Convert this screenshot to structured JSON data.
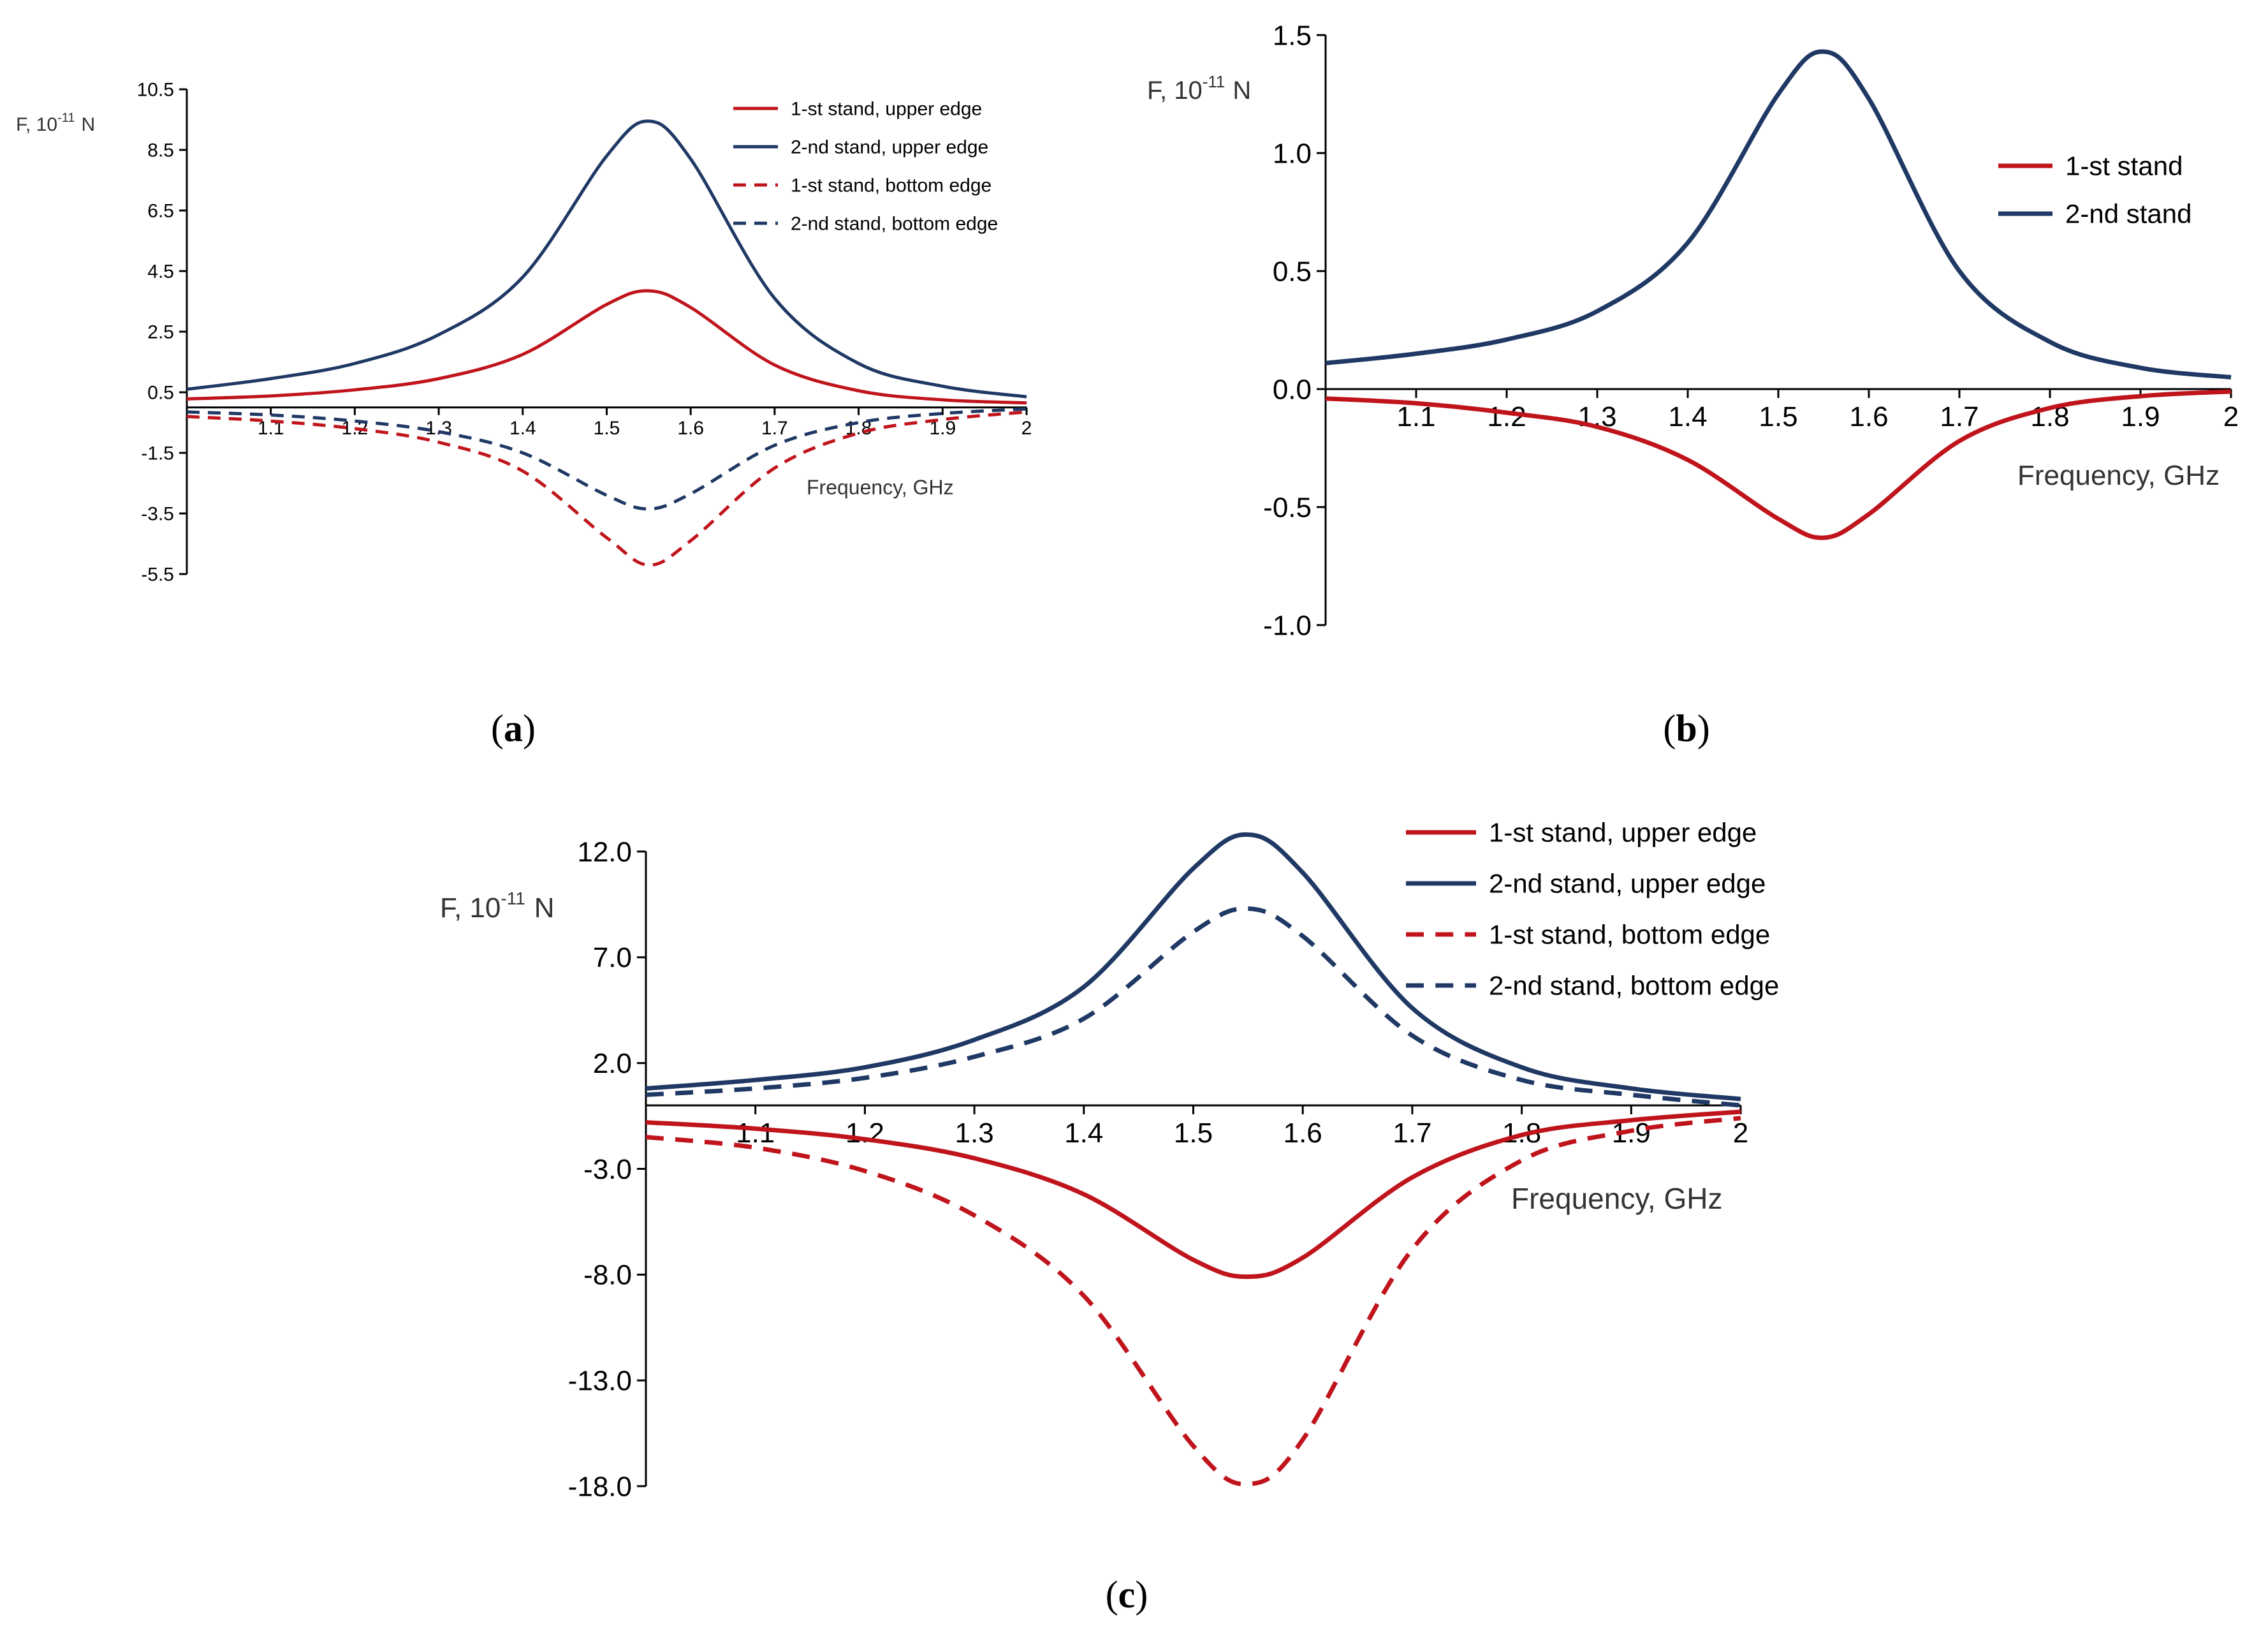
{
  "chart_data": [
    {
      "panel": "(a)",
      "type": "line",
      "ylabel": "F, 10",
      "ylabel_exp": "-11",
      "ylabel_unit": "N",
      "xlabel": "Frequency,  GHz",
      "xlim": [
        1,
        2
      ],
      "ylim": [
        -5.5,
        10.5
      ],
      "xticks": [
        "1.1",
        "1.2",
        "1.3",
        "1.4",
        "1.5",
        "1.6",
        "1.7",
        "1.8",
        "1.9",
        "2"
      ],
      "yticks": [
        "10.5",
        "8.5",
        "6.5",
        "4.5",
        "2.5",
        "0.5",
        "-1.5",
        "-3.5",
        "-5.5"
      ],
      "x": [
        1.0,
        1.1,
        1.2,
        1.3,
        1.4,
        1.5,
        1.55,
        1.6,
        1.7,
        1.8,
        1.9,
        2.0
      ],
      "series": [
        {
          "name": "1-st stand, upper edge",
          "color": "#c0141c",
          "dash": false,
          "values": [
            0.28,
            0.38,
            0.58,
            0.95,
            1.75,
            3.4,
            3.85,
            3.3,
            1.4,
            0.55,
            0.25,
            0.15
          ]
        },
        {
          "name": "2-nd stand, upper edge",
          "color": "#1f3864",
          "dash": false,
          "values": [
            0.6,
            0.95,
            1.45,
            2.4,
            4.3,
            8.3,
            9.45,
            8.2,
            3.6,
            1.45,
            0.7,
            0.35
          ]
        },
        {
          "name": "1-st stand, bottom edge",
          "color": "#c0141c",
          "dash": true,
          "values": [
            -0.3,
            -0.45,
            -0.7,
            -1.15,
            -2.1,
            -4.3,
            -5.2,
            -4.4,
            -2.0,
            -0.85,
            -0.4,
            -0.15
          ]
        },
        {
          "name": "2-nd stand, bottom edge",
          "color": "#1f3864",
          "dash": true,
          "values": [
            -0.15,
            -0.25,
            -0.45,
            -0.8,
            -1.5,
            -2.9,
            -3.35,
            -2.85,
            -1.25,
            -0.5,
            -0.2,
            -0.05
          ]
        }
      ],
      "legend": "top-right"
    },
    {
      "panel": "(b)",
      "type": "line",
      "ylabel": "F, 10",
      "ylabel_exp": "-11",
      "ylabel_unit": "N",
      "xlabel": "Frequency,  GHz",
      "xlim": [
        1,
        2
      ],
      "ylim": [
        -1.0,
        1.5
      ],
      "xticks": [
        "1.1",
        "1.2",
        "1.3",
        "1.4",
        "1.5",
        "1.6",
        "1.7",
        "1.8",
        "1.9",
        "2"
      ],
      "yticks": [
        "1.5",
        "1.0",
        "0.5",
        "0.0",
        "-0.5",
        "-1.0"
      ],
      "x": [
        1.0,
        1.1,
        1.2,
        1.3,
        1.4,
        1.5,
        1.55,
        1.6,
        1.7,
        1.8,
        1.9,
        2.0
      ],
      "series": [
        {
          "name": "1-st stand",
          "color": "#c0141c",
          "dash": false,
          "values": [
            -0.04,
            -0.06,
            -0.1,
            -0.16,
            -0.3,
            -0.55,
            -0.63,
            -0.53,
            -0.22,
            -0.08,
            -0.03,
            -0.01
          ]
        },
        {
          "name": "2-nd stand",
          "color": "#1f3864",
          "dash": false,
          "values": [
            0.11,
            0.15,
            0.21,
            0.33,
            0.62,
            1.25,
            1.43,
            1.23,
            0.5,
            0.2,
            0.09,
            0.05
          ]
        }
      ],
      "legend": "right"
    },
    {
      "panel": "(c)",
      "type": "line",
      "ylabel": "F, 10",
      "ylabel_exp": "-11",
      "ylabel_unit": "N",
      "xlabel": "Frequency,  GHz",
      "xlim": [
        1,
        2
      ],
      "ylim": [
        -18.0,
        12.0
      ],
      "xticks": [
        "1.1",
        "1.2",
        "1.3",
        "1.4",
        "1.5",
        "1.6",
        "1.7",
        "1.8",
        "1.9",
        "2"
      ],
      "yticks": [
        "12.0",
        "7.0",
        "2.0",
        "-3.0",
        "-8.0",
        "-13.0",
        "-18.0"
      ],
      "x": [
        1.0,
        1.1,
        1.2,
        1.3,
        1.4,
        1.5,
        1.55,
        1.6,
        1.7,
        1.8,
        1.9,
        2.0
      ],
      "series": [
        {
          "name": "1-st stand, upper edge",
          "color": "#c0141c",
          "dash": false,
          "values": [
            -0.8,
            -1.1,
            -1.6,
            -2.5,
            -4.2,
            -7.3,
            -8.1,
            -7.2,
            -3.4,
            -1.4,
            -0.7,
            -0.3
          ]
        },
        {
          "name": "2-nd stand, upper edge",
          "color": "#1f3864",
          "dash": false,
          "values": [
            0.8,
            1.2,
            1.8,
            3.1,
            5.6,
            11.2,
            12.8,
            11.0,
            4.6,
            1.8,
            0.8,
            0.3
          ]
        },
        {
          "name": "1-st stand, bottom edge",
          "color": "#c0141c",
          "dash": true,
          "values": [
            -1.5,
            -2.0,
            -3.1,
            -5.2,
            -9.0,
            -16.1,
            -17.9,
            -15.8,
            -6.8,
            -2.6,
            -1.2,
            -0.6
          ]
        },
        {
          "name": "2-nd stand, bottom edge",
          "color": "#1f3864",
          "dash": true,
          "values": [
            0.5,
            0.8,
            1.3,
            2.3,
            4.1,
            8.2,
            9.3,
            8.0,
            3.3,
            1.2,
            0.5,
            0.0
          ]
        }
      ],
      "legend": "top-right"
    }
  ]
}
